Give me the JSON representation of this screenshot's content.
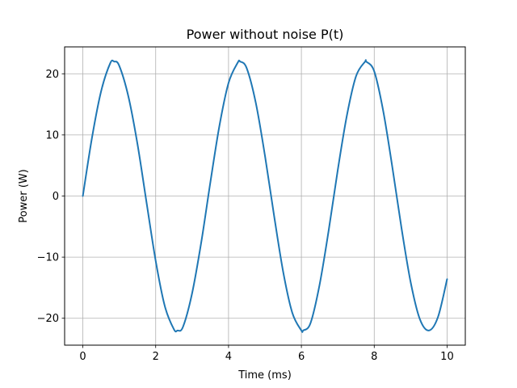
{
  "chart_data": {
    "type": "line",
    "title": "Power without noise P(t)",
    "xlabel": "Time (ms)",
    "ylabel": "Power (W)",
    "xlim": [
      -0.5,
      10.5
    ],
    "ylim": [
      -24.4,
      24.4
    ],
    "xticks": [
      0,
      2,
      4,
      6,
      8,
      10
    ],
    "yticks": [
      -20,
      -10,
      0,
      10,
      20
    ],
    "grid": true,
    "series": [
      {
        "color": "#1f77b4",
        "x": [
          0,
          0.25,
          0.5,
          0.75,
          0.86,
          1.0,
          1.25,
          1.5,
          1.75,
          2.0,
          2.25,
          2.5,
          2.6,
          2.75,
          3.0,
          3.25,
          3.5,
          3.75,
          4.0,
          4.25,
          4.32,
          4.5,
          4.75,
          5.0,
          5.25,
          5.5,
          5.75,
          6.0,
          6.05,
          6.25,
          6.5,
          6.75,
          7.0,
          7.25,
          7.5,
          7.75,
          7.78,
          8.0,
          8.25,
          8.5,
          8.75,
          9.0,
          9.25,
          9.5,
          9.75,
          10.0
        ],
        "y": [
          0,
          9.5,
          17.1,
          21.7,
          22.0,
          21.3,
          16.3,
          8.5,
          -1.1,
          -10.6,
          -18.0,
          -21.8,
          -22.0,
          -21.4,
          -15.9,
          -7.6,
          2.2,
          11.5,
          18.5,
          21.8,
          22.0,
          20.9,
          15.2,
          6.6,
          -3.2,
          -12.4,
          -19.1,
          -22.0,
          -22.0,
          -20.8,
          -14.5,
          -5.6,
          4.3,
          13.2,
          19.6,
          22.0,
          22.0,
          20.4,
          13.8,
          4.6,
          -5.3,
          -14.1,
          -20.1,
          -22.0,
          -19.8,
          -13.6
        ]
      }
    ]
  }
}
